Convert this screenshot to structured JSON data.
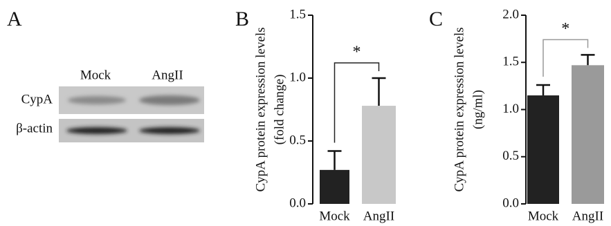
{
  "blot": {
    "panel": "A",
    "columns": [
      "Mock",
      "AngII"
    ],
    "rows": [
      "CypA",
      "β-actin"
    ]
  },
  "chart_data": [
    {
      "type": "bar",
      "panel": "B",
      "ylabel": [
        "CypA protein expression levels",
        "(fold change)"
      ],
      "categories": [
        "Mock",
        "AngII"
      ],
      "values": [
        0.27,
        0.78
      ],
      "errors": [
        0.15,
        0.22
      ],
      "colors": [
        "#222222",
        "#c8c8c8"
      ],
      "ylim": [
        0,
        1.5
      ],
      "yticks": [
        {
          "value": 0,
          "label": "0.0"
        },
        0.5,
        {
          "value": 1,
          "label": "1.0"
        },
        1.5
      ],
      "annotation": "*",
      "bracket_color": "#222222"
    },
    {
      "type": "bar",
      "panel": "C",
      "ylabel": [
        "CypA protein expression levels",
        "(ng/ml)"
      ],
      "categories": [
        "Mock",
        "AngII"
      ],
      "values": [
        1.15,
        1.47
      ],
      "errors": [
        0.11,
        0.11
      ],
      "colors": [
        "#222222",
        "#9a9a9a"
      ],
      "ylim": [
        0,
        2
      ],
      "yticks": [
        {
          "value": 0,
          "label": "0.0"
        },
        0.5,
        {
          "value": 1,
          "label": "1.0"
        },
        1.5,
        {
          "value": 2,
          "label": "2.0"
        }
      ],
      "annotation": "*",
      "bracket_color": "#999999"
    }
  ]
}
